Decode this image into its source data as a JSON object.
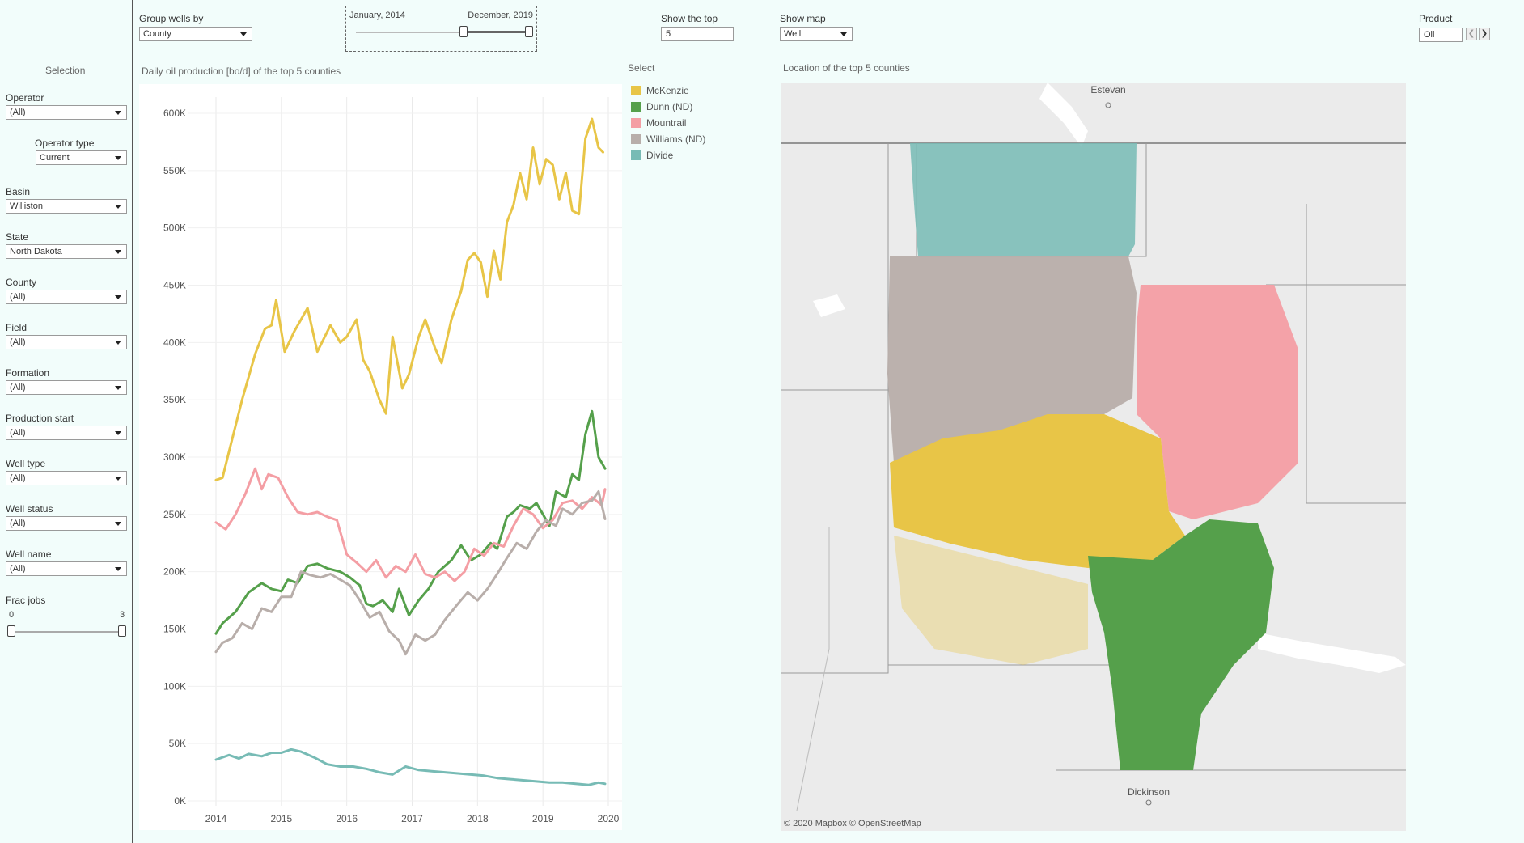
{
  "top": {
    "group_label": "Group wells by",
    "group_value": "County",
    "date_start": "January, 2014",
    "date_end": "December, 2019",
    "show_top_label": "Show the top",
    "show_top_value": "5",
    "show_map_label": "Show map",
    "show_map_value": "Well",
    "product_label": "Product",
    "product_value": "Oil"
  },
  "sidebar": {
    "title": "Selection",
    "filters": [
      {
        "label": "Operator",
        "value": "(All)"
      },
      {
        "label": "Operator type",
        "value": "Current"
      },
      {
        "label": "Basin",
        "value": "Williston"
      },
      {
        "label": "State",
        "value": "North Dakota"
      },
      {
        "label": "County",
        "value": "(All)"
      },
      {
        "label": "Field",
        "value": "(All)"
      },
      {
        "label": "Formation",
        "value": "(All)"
      },
      {
        "label": "Production start",
        "value": "(All)"
      },
      {
        "label": "Well type",
        "value": "(All)"
      },
      {
        "label": "Well status",
        "value": "(All)"
      },
      {
        "label": "Well name",
        "value": "(All)"
      }
    ],
    "frac_label": "Frac jobs",
    "frac_min": "0",
    "frac_max": "3"
  },
  "chart_title": "Daily oil production [bo/d] of the top 5 counties",
  "legend_title": "Select",
  "map": {
    "title": "Location of the top 5 counties",
    "city_top": "Estevan",
    "city_bottom": "Dickinson",
    "attribution": "© 2020 Mapbox  © OpenStreetMap"
  },
  "colors": {
    "McKenzie": "#e8c547",
    "Dunn (ND)": "#55a04b",
    "Mountrail": "#f49ea4",
    "Williams (ND)": "#b8aeaa",
    "Divide": "#77bbb5"
  },
  "chart_data": {
    "type": "line",
    "title": "Daily oil production [bo/d] of the top 5 counties",
    "xlim": [
      2014,
      2020
    ],
    "ylim": [
      0,
      600000
    ],
    "x_ticks": [
      "2014",
      "2015",
      "2016",
      "2017",
      "2018",
      "2019",
      "2020"
    ],
    "y_ticks": [
      "0K",
      "50K",
      "100K",
      "150K",
      "200K",
      "250K",
      "300K",
      "350K",
      "400K",
      "450K",
      "500K",
      "550K",
      "600K"
    ],
    "series": [
      {
        "name": "McKenzie",
        "x": [
          2014.0,
          2014.1,
          2014.2,
          2014.4,
          2014.6,
          2014.75,
          2014.85,
          2014.92,
          2015.05,
          2015.2,
          2015.4,
          2015.55,
          2015.75,
          2015.9,
          2016.0,
          2016.15,
          2016.25,
          2016.35,
          2016.5,
          2016.6,
          2016.7,
          2016.85,
          2016.95,
          2017.1,
          2017.2,
          2017.35,
          2017.45,
          2017.6,
          2017.75,
          2017.85,
          2017.95,
          2018.05,
          2018.15,
          2018.25,
          2018.35,
          2018.45,
          2018.55,
          2018.65,
          2018.75,
          2018.85,
          2018.95,
          2019.05,
          2019.15,
          2019.25,
          2019.35,
          2019.45,
          2019.55,
          2019.65,
          2019.75,
          2019.85,
          2019.92
        ],
        "y": [
          280000,
          282000,
          305000,
          350000,
          390000,
          412000,
          415000,
          437000,
          392000,
          410000,
          430000,
          392000,
          415000,
          400000,
          405000,
          420000,
          385000,
          375000,
          350000,
          338000,
          405000,
          360000,
          372000,
          405000,
          420000,
          395000,
          382000,
          420000,
          445000,
          472000,
          478000,
          470000,
          440000,
          480000,
          455000,
          505000,
          520000,
          548000,
          525000,
          570000,
          538000,
          560000,
          555000,
          525000,
          548000,
          515000,
          512000,
          578000,
          595000,
          570000,
          566000
        ]
      },
      {
        "name": "Dunn (ND)",
        "x": [
          2014.0,
          2014.1,
          2014.3,
          2014.5,
          2014.7,
          2014.85,
          2015.0,
          2015.1,
          2015.25,
          2015.4,
          2015.55,
          2015.7,
          2015.9,
          2016.05,
          2016.2,
          2016.3,
          2016.4,
          2016.55,
          2016.7,
          2016.8,
          2016.95,
          2017.1,
          2017.25,
          2017.4,
          2017.6,
          2017.75,
          2017.9,
          2018.05,
          2018.2,
          2018.3,
          2018.45,
          2018.55,
          2018.65,
          2018.8,
          2018.9,
          2019.0,
          2019.1,
          2019.2,
          2019.35,
          2019.45,
          2019.55,
          2019.65,
          2019.75,
          2019.85,
          2019.95
        ],
        "y": [
          146000,
          155000,
          165000,
          182000,
          190000,
          185000,
          183000,
          193000,
          190000,
          205000,
          207000,
          203000,
          200000,
          195000,
          188000,
          172000,
          170000,
          175000,
          165000,
          185000,
          162000,
          175000,
          185000,
          200000,
          210000,
          223000,
          210000,
          215000,
          225000,
          220000,
          248000,
          252000,
          258000,
          255000,
          260000,
          250000,
          240000,
          270000,
          265000,
          285000,
          280000,
          320000,
          340000,
          300000,
          290000
        ]
      },
      {
        "name": "Mountrail",
        "x": [
          2014.0,
          2014.15,
          2014.3,
          2014.45,
          2014.6,
          2014.7,
          2014.8,
          2014.95,
          2015.1,
          2015.25,
          2015.4,
          2015.55,
          2015.7,
          2015.85,
          2016.0,
          2016.15,
          2016.3,
          2016.45,
          2016.6,
          2016.75,
          2016.9,
          2017.05,
          2017.2,
          2017.35,
          2017.5,
          2017.65,
          2017.8,
          2017.95,
          2018.1,
          2018.25,
          2018.4,
          2018.55,
          2018.7,
          2018.85,
          2019.0,
          2019.15,
          2019.3,
          2019.45,
          2019.6,
          2019.75,
          2019.9,
          2019.95
        ],
        "y": [
          243000,
          237000,
          250000,
          268000,
          290000,
          272000,
          285000,
          282000,
          265000,
          252000,
          250000,
          252000,
          248000,
          245000,
          215000,
          208000,
          200000,
          210000,
          195000,
          205000,
          200000,
          215000,
          198000,
          195000,
          200000,
          192000,
          200000,
          220000,
          214000,
          225000,
          222000,
          240000,
          255000,
          250000,
          238000,
          245000,
          260000,
          262000,
          255000,
          265000,
          258000,
          272000
        ]
      },
      {
        "name": "Williams (ND)",
        "x": [
          2014.0,
          2014.1,
          2014.25,
          2014.4,
          2014.55,
          2014.7,
          2014.85,
          2015.0,
          2015.15,
          2015.3,
          2015.45,
          2015.6,
          2015.75,
          2015.9,
          2016.05,
          2016.2,
          2016.35,
          2016.5,
          2016.65,
          2016.8,
          2016.9,
          2017.05,
          2017.2,
          2017.35,
          2017.5,
          2017.7,
          2017.85,
          2018.0,
          2018.15,
          2018.3,
          2018.45,
          2018.6,
          2018.75,
          2018.9,
          2019.05,
          2019.2,
          2019.3,
          2019.45,
          2019.6,
          2019.75,
          2019.85,
          2019.95
        ],
        "y": [
          130000,
          138000,
          142000,
          155000,
          150000,
          168000,
          165000,
          178000,
          178000,
          200000,
          197000,
          195000,
          198000,
          193000,
          188000,
          175000,
          160000,
          165000,
          148000,
          140000,
          128000,
          145000,
          140000,
          145000,
          158000,
          172000,
          182000,
          175000,
          185000,
          198000,
          212000,
          225000,
          220000,
          235000,
          245000,
          240000,
          255000,
          250000,
          260000,
          262000,
          270000,
          246000
        ]
      },
      {
        "name": "Divide",
        "x": [
          2014.0,
          2014.2,
          2014.35,
          2014.5,
          2014.7,
          2014.85,
          2015.0,
          2015.15,
          2015.3,
          2015.5,
          2015.7,
          2015.9,
          2016.1,
          2016.3,
          2016.5,
          2016.7,
          2016.9,
          2017.1,
          2017.3,
          2017.5,
          2017.7,
          2017.9,
          2018.1,
          2018.3,
          2018.5,
          2018.7,
          2018.9,
          2019.1,
          2019.3,
          2019.5,
          2019.7,
          2019.85,
          2019.95
        ],
        "y": [
          36000,
          40000,
          37000,
          41000,
          39000,
          42000,
          42000,
          45000,
          43000,
          38000,
          32000,
          30000,
          30000,
          28000,
          25000,
          23000,
          30000,
          27000,
          26000,
          25000,
          24000,
          23000,
          22000,
          20000,
          19000,
          18000,
          17000,
          16000,
          16000,
          15000,
          14000,
          16000,
          15000
        ]
      }
    ]
  }
}
